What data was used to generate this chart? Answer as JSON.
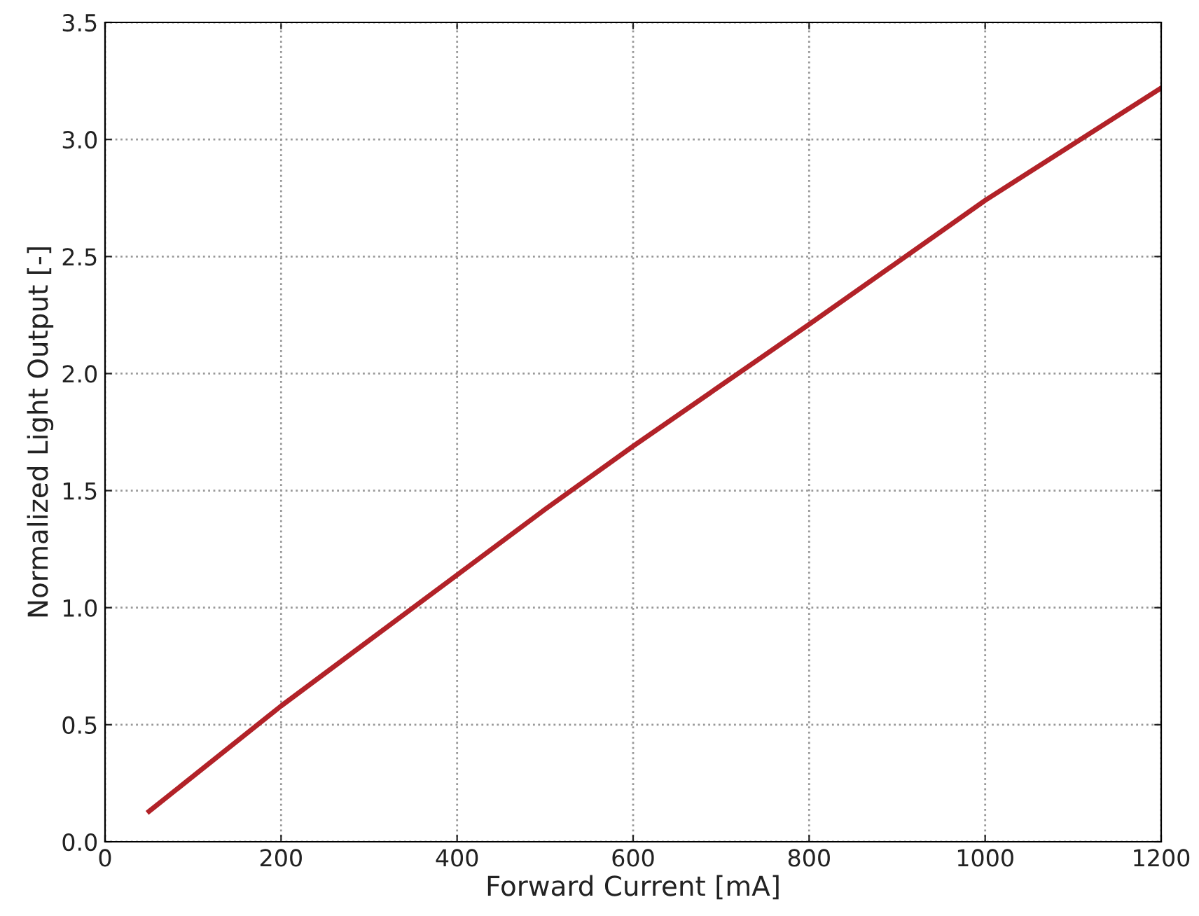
{
  "chart_data": {
    "type": "line",
    "xlabel": "Forward Current [mA]",
    "ylabel": "Normalized Light Output [-]",
    "series": [
      {
        "color": "#b22228",
        "x": [
          50,
          200,
          400,
          500,
          600,
          800,
          1000,
          1200
        ],
        "values": [
          0.13,
          0.58,
          1.14,
          1.42,
          1.69,
          2.21,
          2.74,
          3.22
        ]
      }
    ],
    "xlim": [
      0,
      1200
    ],
    "xticks": [
      0,
      200,
      400,
      600,
      800,
      1000,
      1200
    ],
    "ylim": [
      0,
      3.5
    ],
    "yticks": [
      {
        "value": 0,
        "label": "0.0"
      },
      0.5,
      {
        "value": 1,
        "label": "1.0"
      },
      1.5,
      {
        "value": 2,
        "label": "2.0"
      },
      2.5,
      {
        "value": 3,
        "label": "3.0"
      },
      3.5
    ],
    "grid": true,
    "line_style": "solid",
    "marker": "none"
  }
}
